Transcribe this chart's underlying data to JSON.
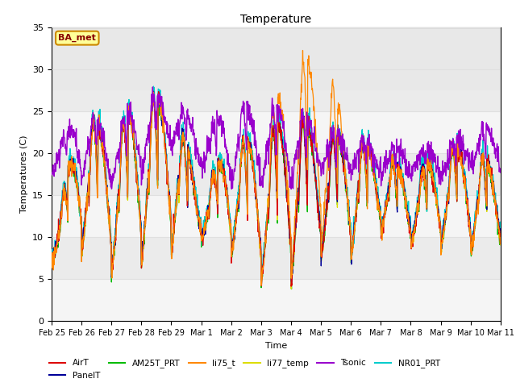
{
  "title": "Temperature",
  "xlabel": "Time",
  "ylabel": "Temperatures (C)",
  "ylim": [
    0,
    35
  ],
  "background_color": "#ffffff",
  "plot_bg_color": "#ffffff",
  "series_colors": {
    "AirT": "#dd0000",
    "PanelT": "#000099",
    "AM25T_PRT": "#00bb00",
    "li75_t": "#ff8800",
    "li77_temp": "#dddd00",
    "Tsonic": "#9900cc",
    "NR01_PRT": "#00cccc"
  },
  "legend_entries": [
    "AirT",
    "PanelT",
    "AM25T_PRT",
    "li75_t",
    "li77_temp",
    "Tsonic",
    "NR01_PRT"
  ],
  "xtick_labels": [
    "Feb 25",
    "Feb 26",
    "Feb 27",
    "Feb 28",
    "Feb 29",
    "Mar 1",
    "Mar 2",
    "Mar 3",
    "Mar 4",
    "Mar 5",
    "Mar 6",
    "Mar 7",
    "Mar 8",
    "Mar 9",
    "Mar 10",
    "Mar 11"
  ],
  "annotation_text": "BA_met",
  "annotation_bg": "#ffff99",
  "annotation_border": "#cc8800",
  "shaded_band_low": 27,
  "shaded_band_high": 35,
  "shaded_band_color": "#e8e8e8",
  "grid_color": "#e0e0e0"
}
